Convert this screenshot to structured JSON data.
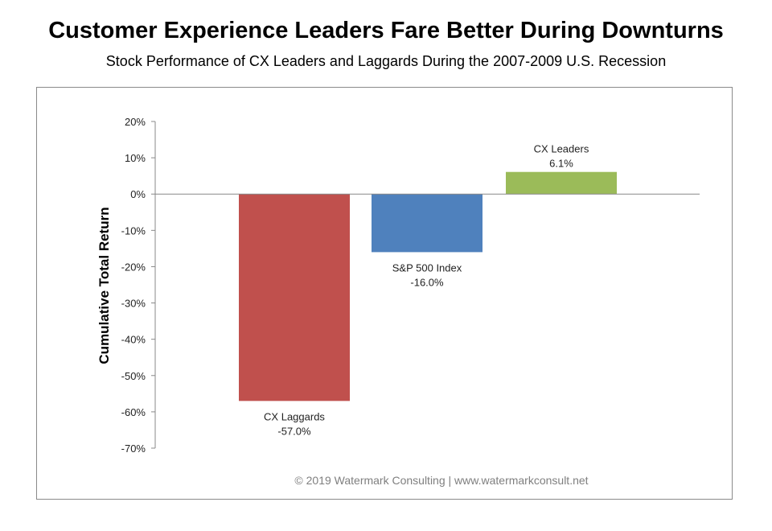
{
  "chart_data": {
    "type": "bar",
    "title": "Customer Experience Leaders Fare Better During Downturns",
    "subtitle": "Stock Performance of CX Leaders and Laggards During the 2007-2009 U.S. Recession",
    "ylabel": "Cumulative Total Return",
    "xlabel": "",
    "ylim": [
      -70,
      20
    ],
    "yticks": [
      "20%",
      "10%",
      "0%",
      "-10%",
      "-20%",
      "-30%",
      "-40%",
      "-50%",
      "-60%",
      "-70%"
    ],
    "ytick_values": [
      20,
      10,
      0,
      -10,
      -20,
      -30,
      -40,
      -50,
      -60,
      -70
    ],
    "categories": [
      "CX Laggards",
      "S&P 500 Index",
      "CX Leaders"
    ],
    "values": [
      -57.0,
      -16.0,
      6.1
    ],
    "data_labels": [
      "-57.0%",
      "-16.0%",
      "6.1%"
    ],
    "colors": [
      "#c0504d",
      "#4f81bd",
      "#9bbb59"
    ],
    "grid": false,
    "legend": "none"
  },
  "footer": "© 2019 Watermark Consulting | www.watermarkconsult.net"
}
